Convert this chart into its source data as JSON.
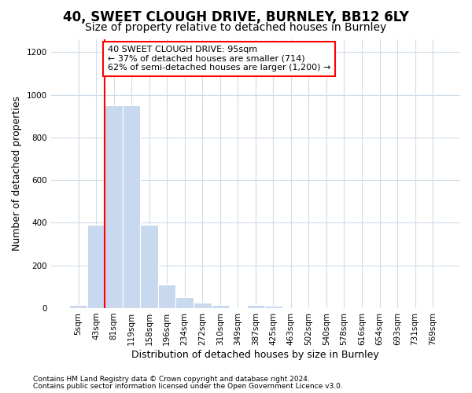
{
  "title_line1": "40, SWEET CLOUGH DRIVE, BURNLEY, BB12 6LY",
  "title_line2": "Size of property relative to detached houses in Burnley",
  "xlabel": "Distribution of detached houses by size in Burnley",
  "ylabel": "Number of detached properties",
  "bar_labels": [
    "5sqm",
    "43sqm",
    "81sqm",
    "119sqm",
    "158sqm",
    "196sqm",
    "234sqm",
    "272sqm",
    "310sqm",
    "349sqm",
    "387sqm",
    "425sqm",
    "463sqm",
    "502sqm",
    "540sqm",
    "578sqm",
    "616sqm",
    "654sqm",
    "693sqm",
    "731sqm",
    "769sqm"
  ],
  "bar_values": [
    15,
    390,
    950,
    950,
    390,
    110,
    50,
    25,
    15,
    5,
    15,
    10,
    0,
    0,
    0,
    0,
    0,
    0,
    0,
    0,
    0
  ],
  "bar_color": "#c8d8ee",
  "bar_edgecolor": "#c8d8ee",
  "vline_x_index": 2,
  "vline_color": "red",
  "ylim": [
    0,
    1260
  ],
  "yticks": [
    0,
    200,
    400,
    600,
    800,
    1000,
    1200
  ],
  "annotation_text": "40 SWEET CLOUGH DRIVE: 95sqm\n← 37% of detached houses are smaller (714)\n62% of semi-detached houses are larger (1,200) →",
  "annotation_box_facecolor": "white",
  "annotation_box_edgecolor": "red",
  "footer_line1": "Contains HM Land Registry data © Crown copyright and database right 2024.",
  "footer_line2": "Contains public sector information licensed under the Open Government Licence v3.0.",
  "background_color": "#ffffff",
  "plot_background": "#ffffff",
  "grid_color": "#d0dce8",
  "title1_fontsize": 12,
  "title2_fontsize": 10,
  "ylabel_fontsize": 9,
  "xlabel_fontsize": 9,
  "tick_fontsize": 7.5,
  "footer_fontsize": 6.5,
  "annotation_fontsize": 8
}
